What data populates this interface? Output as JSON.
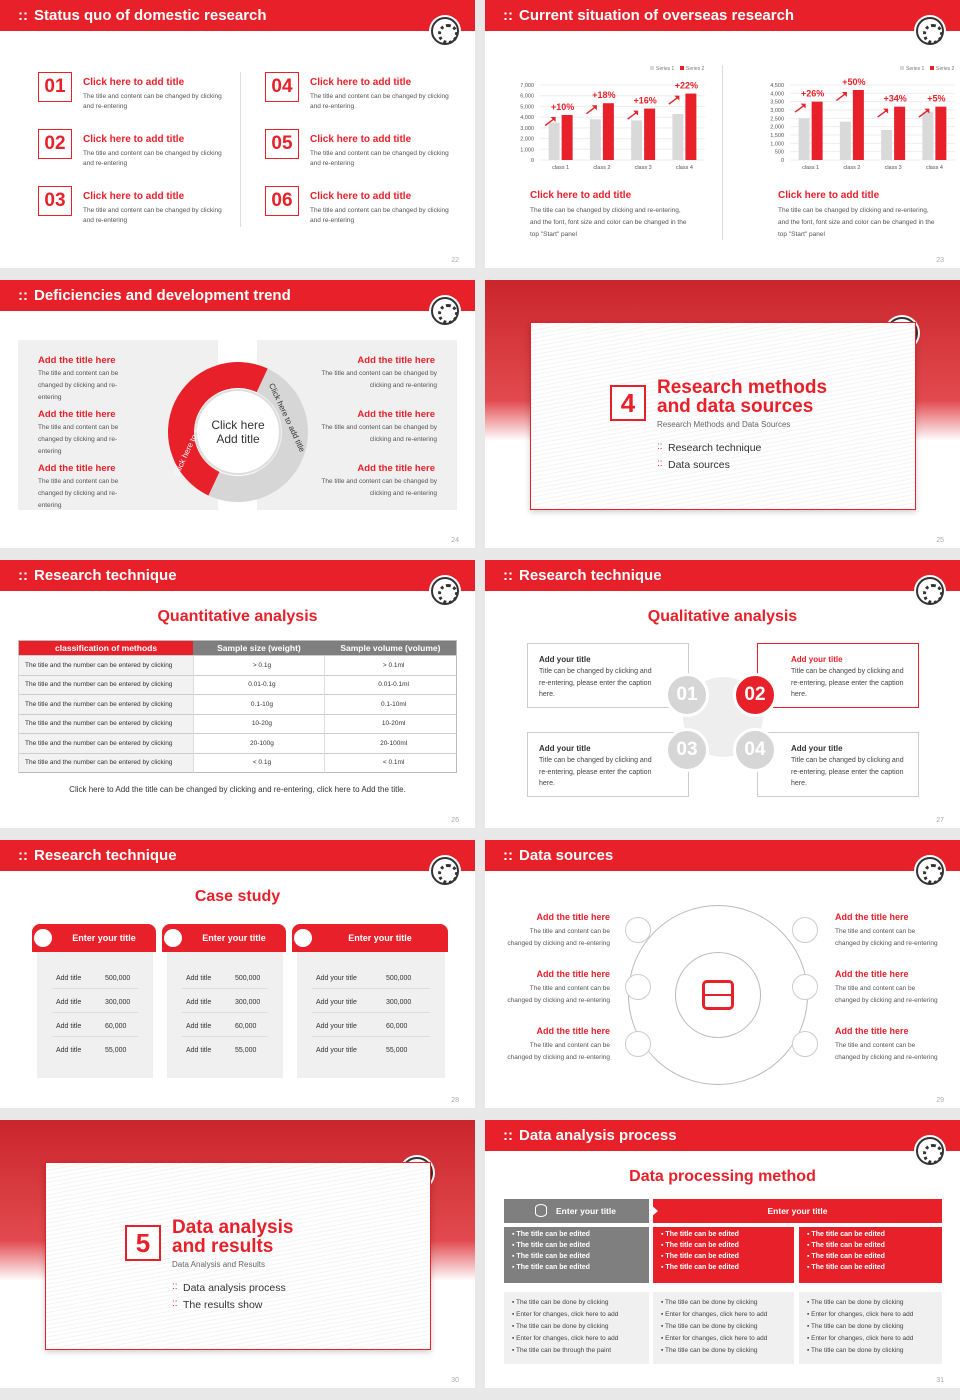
{
  "slides": [
    {
      "page": "22",
      "title": "Status quo of domestic research",
      "items": [
        {
          "num": "01",
          "title": "Click here to add title",
          "text": "The title and content can be changed by clicking and re-entering"
        },
        {
          "num": "02",
          "title": "Click here to add title",
          "text": "The title and content can be changed by clicking and re-entering"
        },
        {
          "num": "03",
          "title": "Click here to add title",
          "text": "The title and content can be changed by clicking and re-entering"
        },
        {
          "num": "04",
          "title": "Click here to add title",
          "text": "The title and content can be changed by clicking and re-entering"
        },
        {
          "num": "05",
          "title": "Click here to add title",
          "text": "The title and content can be changed by clicking and re-entering"
        },
        {
          "num": "06",
          "title": "Click here to add title",
          "text": "The title and content can be changed by clicking and re-entering"
        }
      ]
    },
    {
      "page": "23",
      "title": "Current situation of overseas research",
      "captions": [
        {
          "title": "Click here to add title",
          "text": "The title can be changed by clicking and re-entering, and the font, font size and color can be changed in the top \"Start\" panel"
        },
        {
          "title": "Click here to add title",
          "text": "The title can be changed by clicking and re-entering, and the font, font size and color can be changed in the top \"Start\" panel"
        }
      ]
    },
    {
      "page": "24",
      "title": "Deficiencies and development trend",
      "center": "Click here Add title",
      "arc_left": "Click here to add title",
      "arc_right": "Click here to add title",
      "items": [
        {
          "title": "Add the title here",
          "text": "The title and content can be changed by clicking and re-entering"
        },
        {
          "title": "Add the title here",
          "text": "The title and content can be changed by clicking and re-entering"
        },
        {
          "title": "Add the title here",
          "text": "The title and content can be changed by clicking and re-entering"
        },
        {
          "title": "Add the title here",
          "text": "The title and content can be changed by clicking and re-entering"
        },
        {
          "title": "Add the title here",
          "text": "The title and content can be changed by clicking and re-entering"
        },
        {
          "title": "Add the title here",
          "text": "The title and content can be changed by clicking and re-entering"
        }
      ]
    },
    {
      "page": "25",
      "num": "4",
      "title1": "Research methods",
      "title2": "and data sources",
      "subtitle": "Research Methods and Data Sources",
      "bullets": [
        "Research technique",
        "Data sources"
      ]
    },
    {
      "page": "26",
      "title": "Research technique",
      "subtitle": "Quantitative analysis",
      "columns": [
        "classification of methods",
        "Sample size (weight)",
        "Sample volume (volume)"
      ],
      "rows": [
        [
          "The title and the number can be entered by clicking",
          "> 0.1g",
          "> 0.1ml"
        ],
        [
          "The title and the number can be entered by clicking",
          "0.01-0.1g",
          "0.01-0.1ml"
        ],
        [
          "The title and the number can be entered by clicking",
          "0.1-10g",
          "0.1-10ml"
        ],
        [
          "The title and the number can be entered by clicking",
          "10-20g",
          "10-20ml"
        ],
        [
          "The title and the number can be entered by clicking",
          "20-100g",
          "20-100ml"
        ],
        [
          "The title and the number can be entered by clicking",
          "< 0.1g",
          "< 0.1ml"
        ]
      ],
      "note": "Click here to Add the title can be changed by clicking and re-entering, click here to Add the title."
    },
    {
      "page": "27",
      "title": "Research technique",
      "subtitle": "Qualitative analysis",
      "items": [
        {
          "num": "01",
          "title": "Add your title",
          "text": "Title can be changed by clicking and re-entering, please enter the caption here."
        },
        {
          "num": "02",
          "title": "Add your title",
          "text": "Title can be changed by clicking and re-entering, please enter the caption here."
        },
        {
          "num": "03",
          "title": "Add your title",
          "text": "Title can be changed by clicking and re-entering, please enter the caption here."
        },
        {
          "num": "04",
          "title": "Add your title",
          "text": "Title can be changed by clicking and re-entering, please enter the caption here."
        }
      ]
    },
    {
      "page": "28",
      "title": "Research technique",
      "subtitle": "Case study",
      "cards": [
        {
          "title": "Enter your title",
          "icon": "phone-icon",
          "rows": [
            [
              "Add title",
              "500,000"
            ],
            [
              "Add title",
              "300,000"
            ],
            [
              "Add title",
              "60,000"
            ],
            [
              "Add title",
              "55,000"
            ]
          ]
        },
        {
          "title": "Enter your title",
          "icon": "monitor-chart-icon",
          "rows": [
            [
              "Add title",
              "500,000"
            ],
            [
              "Add title",
              "300,000"
            ],
            [
              "Add title",
              "60,000"
            ],
            [
              "Add title",
              "55,000"
            ]
          ]
        },
        {
          "title": "Enter your title",
          "icon": "chat-icon",
          "rows": [
            [
              "Add your title",
              "500,000"
            ],
            [
              "Add your title",
              "300,000"
            ],
            [
              "Add your title",
              "60,000"
            ],
            [
              "Add your title",
              "55,000"
            ]
          ]
        }
      ]
    },
    {
      "page": "29",
      "title": "Data sources",
      "items": [
        {
          "title": "Add the title here",
          "text": "The title and content can be changed by clicking and re-entering",
          "icon": "people-icon"
        },
        {
          "title": "Add the title here",
          "text": "The title and content can be changed by clicking and re-entering",
          "icon": "box-icon"
        },
        {
          "title": "Add the title here",
          "text": "The title and content can be changed by clicking and re-entering",
          "icon": "phone-icon"
        },
        {
          "title": "Add the title here",
          "text": "The title and content can be changed by clicking and re-entering",
          "icon": "chat-icon"
        },
        {
          "title": "Add the title here",
          "text": "The title and content can be changed by clicking and re-entering",
          "icon": "chart-icon"
        },
        {
          "title": "Add the title here",
          "text": "The title and content can be changed by clicking and re-entering",
          "icon": "building-icon"
        }
      ]
    },
    {
      "page": "30",
      "num": "5",
      "title1": "Data analysis",
      "title2": "and results",
      "subtitle": "Data Analysis and Results",
      "bullets": [
        "Data analysis process",
        "The results show"
      ]
    },
    {
      "page": "31",
      "title": "Data analysis process",
      "subtitle": "Data processing method",
      "head_left": "Enter your title",
      "head_right": "Enter your title",
      "top": [
        [
          "The title can be edited",
          "The title can be edited",
          "The title can be edited",
          "The title can be edited"
        ],
        [
          "The title can be edited",
          "The title can be edited",
          "The title can be edited",
          "The title can be edited"
        ],
        [
          "The title can be edited",
          "The title can be edited",
          "The title can be edited",
          "The title can be edited"
        ]
      ],
      "bottom": [
        [
          "The title can be done by clicking",
          "Enter for changes, click here to add",
          "The title can be done by clicking",
          "Enter for changes, click here to add",
          "The title can be through the paint"
        ],
        [
          "The title can be done by clicking",
          "Enter for changes, click here to add",
          "The title can be done by clicking",
          "Enter for changes, click here to add",
          "The title can be done by clicking"
        ],
        [
          "The title can be done by clicking",
          "Enter for changes, click here to add",
          "The title can be done by clicking",
          "Enter for changes, click here to add",
          "The title can be done by clicking"
        ]
      ]
    }
  ],
  "colors": {
    "accent": "#e8202a",
    "gray": "#7f7f7f",
    "light": "#f0f0f0"
  },
  "chart_data": [
    {
      "type": "bar",
      "categories": [
        "class 1",
        "class 2",
        "class 3",
        "class 4"
      ],
      "series": [
        {
          "name": "Series 1",
          "values": [
            3500,
            3800,
            3700,
            4300
          ]
        },
        {
          "name": "Series 2",
          "values": [
            4200,
            5300,
            4800,
            6200
          ]
        }
      ],
      "annotations": [
        "+10%",
        "+18%",
        "+16%",
        "+22%"
      ],
      "ylim": [
        0,
        7000
      ],
      "yticks": [
        "0",
        "1,000",
        "2,000",
        "3,000",
        "4,000",
        "5,000",
        "6,000",
        "7,000"
      ],
      "legend": "top-right",
      "grid": true
    },
    {
      "type": "bar",
      "categories": [
        "class 1",
        "class 2",
        "class 3",
        "class 4"
      ],
      "series": [
        {
          "name": "Series 1",
          "values": [
            2500,
            2300,
            1800,
            2900
          ]
        },
        {
          "name": "Series 2",
          "values": [
            3500,
            4200,
            3200,
            3200
          ]
        }
      ],
      "annotations": [
        "+26%",
        "+50%",
        "+34%",
        "+5%"
      ],
      "ylim": [
        0,
        4500
      ],
      "yticks": [
        "0",
        "500",
        "1,000",
        "1,500",
        "2,000",
        "2,500",
        "3,000",
        "3,500",
        "4,000",
        "4,500"
      ],
      "legend": "top-right",
      "grid": true
    }
  ]
}
